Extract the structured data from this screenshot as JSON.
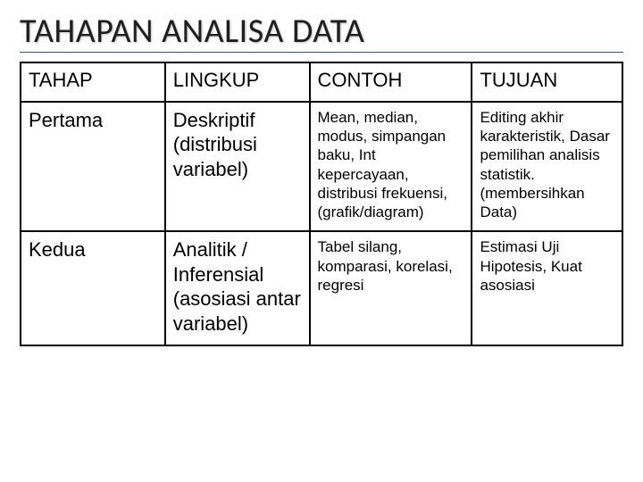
{
  "title": "TAHAPAN ANALISA DATA",
  "table": {
    "columns": [
      "TAHAP",
      "LINGKUP",
      "CONTOH",
      "TUJUAN"
    ],
    "col_widths_pct": [
      24,
      24,
      27,
      25
    ],
    "rows": [
      {
        "tahap": "Pertama",
        "lingkup": "Deskriptif (distribusi variabel)",
        "contoh": "Mean, median, modus, simpangan baku, Int kepercayaan, distribusi frekuensi, (grafik/diagram)",
        "tujuan": "Editing akhir karakteristik, Dasar pemilihan analisis statistik. (membersihkan Data)"
      },
      {
        "tahap": "Kedua",
        "lingkup": "Analitik / Inferensial (asosiasi antar variabel)",
        "contoh": "Tabel silang, komparasi, korelasi, regresi",
        "tujuan": "Estimasi Uji Hipotesis, Kuat asosiasi"
      }
    ],
    "header_fontsize": 22,
    "big_cell_fontsize": 22,
    "small_cell_fontsize": 17,
    "border_color": "#000000",
    "border_width": 2,
    "background_color": "#ffffff",
    "title_fontsize": 38,
    "title_underline_color": "#2e5aa8"
  }
}
